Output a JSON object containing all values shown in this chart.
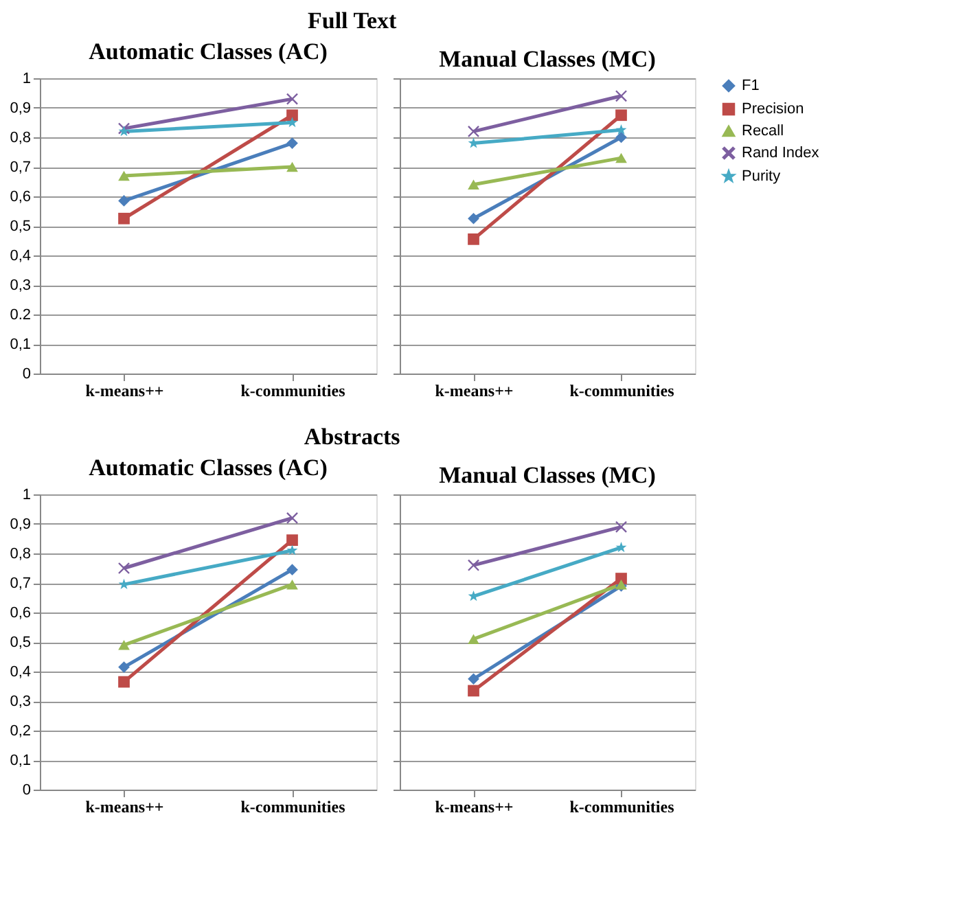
{
  "chart_data": [
    {
      "type": "line",
      "title": "Automatic Classes (AC)",
      "annotations": [
        "Full Text"
      ],
      "legend": "right",
      "categories": [
        "k-means++",
        "k-communities"
      ],
      "ylim": [
        0,
        1
      ],
      "yticks": [
        0,
        {
          "value": 0.1,
          "label": "0,1"
        },
        {
          "value": 0.2,
          "label": "0.2"
        },
        {
          "value": 0.3,
          "label": "0,3"
        },
        {
          "value": 0.4,
          "label": "0,4"
        },
        {
          "value": 0.5,
          "label": "0,5"
        },
        {
          "value": 0.6,
          "label": "0,6"
        },
        {
          "value": 0.7,
          "label": "0,7"
        },
        {
          "value": 0.8,
          "label": "0,8"
        },
        {
          "value": 0.9,
          "label": "0,9"
        },
        1
      ],
      "grid": "y",
      "series": [
        {
          "name": "F1",
          "color": "#4a7ebb",
          "marker": "diamond",
          "values": [
            0.585,
            0.78
          ]
        },
        {
          "name": "Precision",
          "color": "#be4b48",
          "marker": "square",
          "values": [
            0.525,
            0.875
          ]
        },
        {
          "name": "Recall",
          "color": "#98b954",
          "marker": "triangle",
          "values": [
            0.67,
            0.7
          ]
        },
        {
          "name": "Rand Index",
          "color": "#7d5fa0",
          "marker": "cross",
          "values": [
            0.83,
            0.93
          ]
        },
        {
          "name": "Purity",
          "color": "#46aac5",
          "marker": "star",
          "values": [
            0.82,
            0.85
          ]
        }
      ]
    },
    {
      "type": "line",
      "title": "Manual Classes (MC)",
      "categories": [
        "k-means++",
        "k-communities"
      ],
      "ylim": [
        0,
        1
      ],
      "yticks": [
        0,
        0.1,
        0.2,
        0.3,
        0.4,
        0.5,
        0.6,
        0.7,
        0.8,
        0.9,
        1
      ],
      "tick_labels": "x",
      "grid": "y",
      "legend": "right",
      "series": [
        {
          "name": "F1",
          "color": "#4a7ebb",
          "marker": "diamond",
          "values": [
            0.525,
            0.8
          ]
        },
        {
          "name": "Precision",
          "color": "#be4b48",
          "marker": "square",
          "values": [
            0.455,
            0.875
          ]
        },
        {
          "name": "Recall",
          "color": "#98b954",
          "marker": "triangle",
          "values": [
            0.64,
            0.73
          ]
        },
        {
          "name": "Rand Index",
          "color": "#7d5fa0",
          "marker": "cross",
          "values": [
            0.82,
            0.94
          ]
        },
        {
          "name": "Purity",
          "color": "#46aac5",
          "marker": "star",
          "values": [
            0.78,
            0.825
          ]
        }
      ]
    },
    {
      "type": "line",
      "title": "Automatic Classes (AC)",
      "annotations": [
        "Abstracts"
      ],
      "legend": "right",
      "categories": [
        "k-means++",
        "k-communities"
      ],
      "ylim": [
        0,
        1
      ],
      "yticks": [
        0,
        {
          "value": 0.1,
          "label": "0,1"
        },
        {
          "value": 0.2,
          "label": "0,2"
        },
        {
          "value": 0.3,
          "label": "0,3"
        },
        {
          "value": 0.4,
          "label": "0,4"
        },
        {
          "value": 0.5,
          "label": "0,5"
        },
        {
          "value": 0.6,
          "label": "0,6"
        },
        {
          "value": 0.7,
          "label": "0,7"
        },
        {
          "value": 0.8,
          "label": "0,8"
        },
        {
          "value": 0.9,
          "label": "0,9"
        },
        1
      ],
      "grid": "y",
      "series": [
        {
          "name": "F1",
          "color": "#4a7ebb",
          "marker": "diamond",
          "values": [
            0.415,
            0.745
          ]
        },
        {
          "name": "Precision",
          "color": "#be4b48",
          "marker": "square",
          "values": [
            0.365,
            0.845
          ]
        },
        {
          "name": "Recall",
          "color": "#98b954",
          "marker": "triangle",
          "values": [
            0.49,
            0.695
          ]
        },
        {
          "name": "Rand Index",
          "color": "#7d5fa0",
          "marker": "cross",
          "values": [
            0.75,
            0.92
          ]
        },
        {
          "name": "Purity",
          "color": "#46aac5",
          "marker": "star",
          "values": [
            0.695,
            0.81
          ]
        }
      ]
    },
    {
      "type": "line",
      "title": "Manual Classes (MC)",
      "categories": [
        "k-means++",
        "k-communities"
      ],
      "ylim": [
        0,
        1
      ],
      "yticks": [
        0,
        0.1,
        0.2,
        0.3,
        0.4,
        0.5,
        0.6,
        0.7,
        0.8,
        0.9,
        1
      ],
      "tick_labels": "x",
      "grid": "y",
      "legend": "right",
      "series": [
        {
          "name": "F1",
          "color": "#4a7ebb",
          "marker": "diamond",
          "values": [
            0.375,
            0.69
          ]
        },
        {
          "name": "Precision",
          "color": "#be4b48",
          "marker": "square",
          "values": [
            0.335,
            0.715
          ]
        },
        {
          "name": "Recall",
          "color": "#98b954",
          "marker": "triangle",
          "values": [
            0.51,
            0.695
          ]
        },
        {
          "name": "Rand Index",
          "color": "#7d5fa0",
          "marker": "cross",
          "values": [
            0.76,
            0.89
          ]
        },
        {
          "name": "Purity",
          "color": "#46aac5",
          "marker": "star",
          "values": [
            0.655,
            0.82
          ]
        }
      ]
    }
  ]
}
